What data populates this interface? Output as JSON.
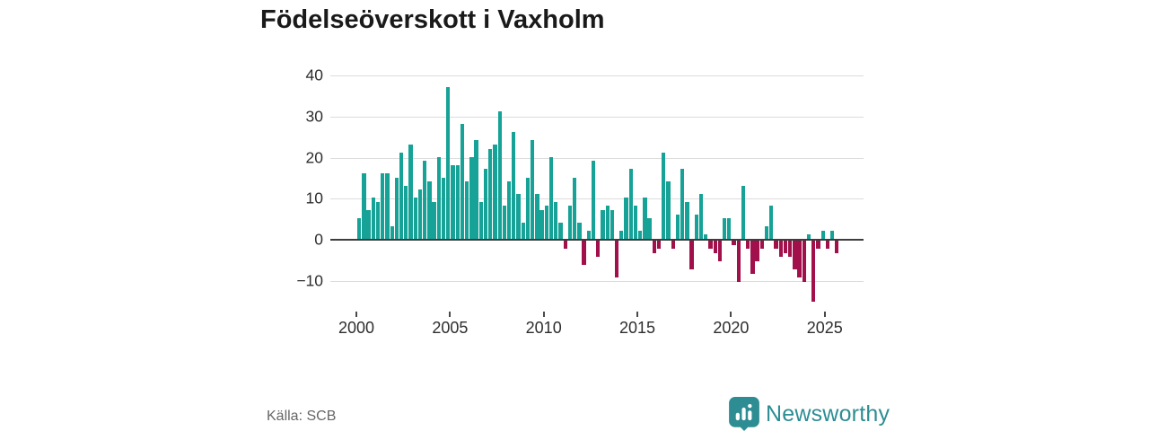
{
  "title": "Födelseöverskott i Vaxholm",
  "source": {
    "label": "Källa: SCB"
  },
  "branding": {
    "name": "Newsworthy",
    "icon": "newsworthy-badge-bar-chart-icon"
  },
  "colors": {
    "positive_bar": "#16a296",
    "negative_bar": "#a2104c",
    "grid": "#dcdcdc",
    "zero_line": "#3d3d3d",
    "brand_teal": "#2d8d93",
    "title_text": "#1a1a1a",
    "axis_text": "#2e2e2e",
    "source_text": "#666666"
  },
  "chart_data": {
    "type": "bar",
    "title": "Födelseöverskott i Vaxholm",
    "xlabel": "",
    "ylabel": "",
    "unit": "quarterly values",
    "start": "2000 Q1",
    "end": "2025 Q3",
    "ylim": [
      -16,
      42
    ],
    "grid": true,
    "y_ticks": [
      {
        "v": 40,
        "label": "40"
      },
      {
        "v": 30,
        "label": "30"
      },
      {
        "v": 20,
        "label": "20"
      },
      {
        "v": 10,
        "label": "10"
      },
      {
        "v": 0,
        "label": "0"
      },
      {
        "v": -10,
        "label": "−10"
      }
    ],
    "x_ticks": [
      {
        "year": 2000,
        "label": "2000"
      },
      {
        "year": 2005,
        "label": "2005"
      },
      {
        "year": 2010,
        "label": "2010"
      },
      {
        "year": 2015,
        "label": "2015"
      },
      {
        "year": 2020,
        "label": "2020"
      },
      {
        "year": 2025,
        "label": "2025"
      }
    ],
    "values": [
      5,
      16,
      7,
      10,
      9,
      16,
      16,
      3,
      15,
      21,
      13,
      23,
      10,
      12,
      19,
      14,
      9,
      20,
      15,
      37,
      18,
      18,
      28,
      14,
      20,
      24,
      9,
      17,
      22,
      23,
      31,
      8,
      14,
      26,
      11,
      4,
      15,
      24,
      11,
      7,
      8,
      20,
      9,
      4,
      -2,
      8,
      15,
      4,
      -6,
      2,
      19,
      -4,
      7,
      8,
      7,
      -9,
      2,
      10,
      17,
      8,
      2,
      10,
      5,
      -3,
      -2,
      21,
      14,
      -2,
      6,
      17,
      9,
      -7,
      6,
      11,
      1,
      -2,
      -3,
      -5,
      5,
      5,
      -1,
      -10,
      13,
      -2,
      -8,
      -5,
      -2,
      3,
      8,
      -2,
      -4,
      -3,
      -4,
      -7,
      -9,
      -10,
      1,
      -15,
      -2,
      2,
      -2,
      2,
      -3
    ]
  }
}
